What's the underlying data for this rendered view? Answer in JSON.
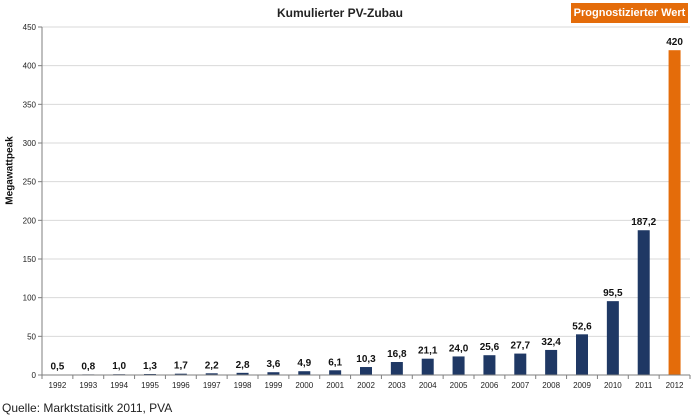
{
  "chart_data": {
    "type": "bar",
    "title": "Kumulierter PV-Zubau",
    "ylabel": "Megawattpeak",
    "xlabel": "",
    "ylim": [
      0,
      450
    ],
    "yticks": [
      "0",
      "50",
      "100",
      "150",
      "200",
      "250",
      "300",
      "350",
      "400",
      "450"
    ],
    "grid": true,
    "categories": [
      "1992",
      "1993",
      "1994",
      "1995",
      "1996",
      "1997",
      "1998",
      "1999",
      "2000",
      "2001",
      "2002",
      "2003",
      "2004",
      "2005",
      "2006",
      "2007",
      "2008",
      "2009",
      "2010",
      "2011",
      "2012"
    ],
    "values": [
      0.5,
      0.8,
      1.0,
      1.3,
      1.7,
      2.2,
      2.8,
      3.6,
      4.9,
      6.1,
      10.3,
      16.8,
      21.1,
      24.0,
      25.6,
      27.7,
      32.4,
      52.6,
      95.5,
      187.2,
      420
    ],
    "value_labels": [
      "0,5",
      "0,8",
      "1,0",
      "1,3",
      "1,7",
      "2,2",
      "2,8",
      "3,6",
      "4,9",
      "6,1",
      "10,3",
      "16,8",
      "21,1",
      "24,0",
      "25,6",
      "27,7",
      "32,4",
      "52,6",
      "95,5",
      "187,2",
      "420"
    ],
    "forecast_index": 20,
    "legend": {
      "label": "Prognostizierter Wert",
      "placement": "top-right"
    },
    "colors": {
      "actual": "#1f3864",
      "forecast": "#e46c0a",
      "grid": "#d9d9d9",
      "axis": "#7f7f7f"
    }
  },
  "source": "Quelle: Marktstatisitk 2011, PVA"
}
